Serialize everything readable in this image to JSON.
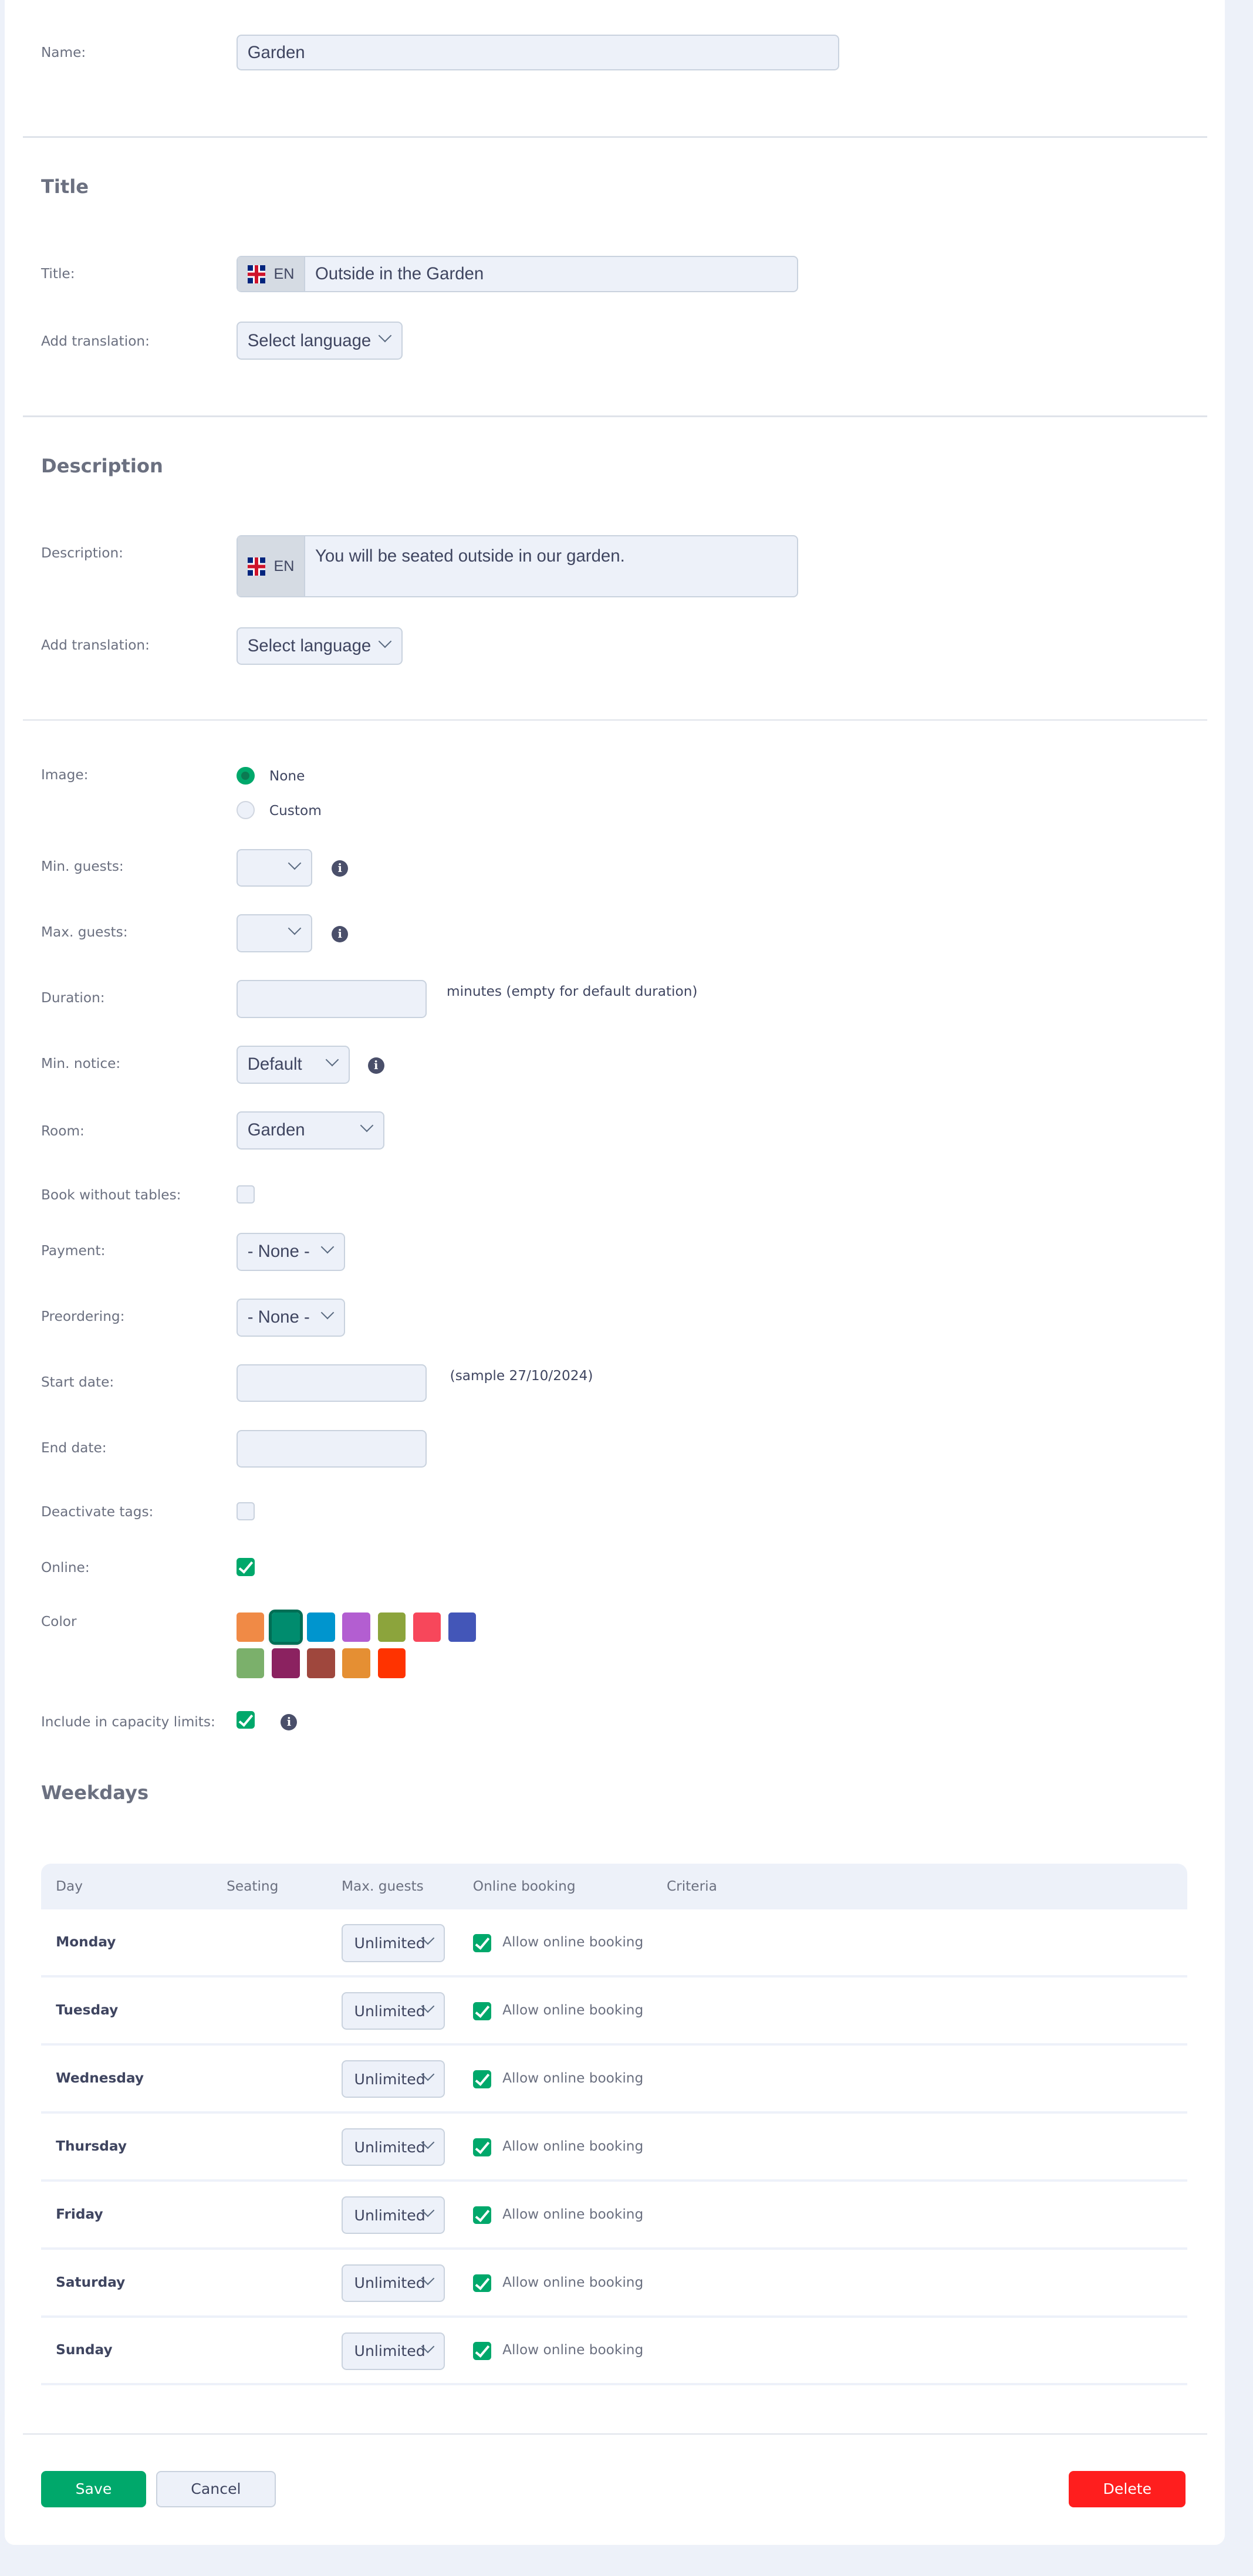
{
  "general": {
    "name_label": "Name:",
    "name_value": "Garden"
  },
  "title_section": {
    "heading": "Title",
    "title_label": "Title:",
    "lang_code": "EN",
    "title_value": "Outside in the Garden",
    "translation_label": "Add translation:",
    "translation_select": "Select language"
  },
  "description_section": {
    "heading": "Description",
    "description_label": "Description:",
    "lang_code": "EN",
    "description_value": "You will be seated outside in our garden.",
    "translation_label": "Add translation:",
    "translation_select": "Select language"
  },
  "settings": {
    "image_label": "Image:",
    "image_options": [
      {
        "label": "None",
        "selected": true
      },
      {
        "label": "Custom",
        "selected": false
      }
    ],
    "min_guests_label": "Min. guests:",
    "min_guests_value": "",
    "max_guests_label": "Max. guests:",
    "max_guests_value": "",
    "duration_label": "Duration:",
    "duration_value": "",
    "duration_hint": "minutes (empty for default duration)",
    "min_notice_label": "Min. notice:",
    "min_notice_value": "Default",
    "room_label": "Room:",
    "room_value": "Garden",
    "book_without_tables_label": "Book without tables:",
    "book_without_tables": false,
    "payment_label": "Payment:",
    "payment_value": "- None -",
    "preordering_label": "Preordering:",
    "preordering_value": "- None -",
    "start_date_label": "Start date:",
    "start_date_value": "",
    "start_date_hint": "(sample 27/10/2024)",
    "end_date_label": "End date:",
    "end_date_value": "",
    "deactivate_tags_label": "Deactivate tags:",
    "deactivate_tags": false,
    "online_label": "Online:",
    "online": true,
    "color_label": "Color",
    "colors": [
      "#f08a46",
      "#008c6e",
      "#0095ce",
      "#b35ed1",
      "#8ca43c",
      "#f7475b",
      "#4356b8",
      "#7bb06b",
      "#8b2260",
      "#9f473d",
      "#e58f33",
      "#ff3300"
    ],
    "selected_color": "#008c6e",
    "capacity_label": "Include in capacity limits:",
    "capacity": true
  },
  "weekdays": {
    "heading": "Weekdays",
    "columns": [
      "Day",
      "Seating",
      "Max. guests",
      "Online booking",
      "Criteria"
    ],
    "rows": [
      {
        "day": "Monday",
        "max_guests": "Unlimited",
        "online_label": "Allow online booking",
        "online": true
      },
      {
        "day": "Tuesday",
        "max_guests": "Unlimited",
        "online_label": "Allow online booking",
        "online": true
      },
      {
        "day": "Wednesday",
        "max_guests": "Unlimited",
        "online_label": "Allow online booking",
        "online": true
      },
      {
        "day": "Thursday",
        "max_guests": "Unlimited",
        "online_label": "Allow online booking",
        "online": true
      },
      {
        "day": "Friday",
        "max_guests": "Unlimited",
        "online_label": "Allow online booking",
        "online": true
      },
      {
        "day": "Saturday",
        "max_guests": "Unlimited",
        "online_label": "Allow online booking",
        "online": true
      },
      {
        "day": "Sunday",
        "max_guests": "Unlimited",
        "online_label": "Allow online booking",
        "online": true
      }
    ]
  },
  "actions": {
    "save": "Save",
    "cancel": "Cancel",
    "delete": "Delete",
    "accent": "#00a86b",
    "danger": "#ff1e1e"
  }
}
